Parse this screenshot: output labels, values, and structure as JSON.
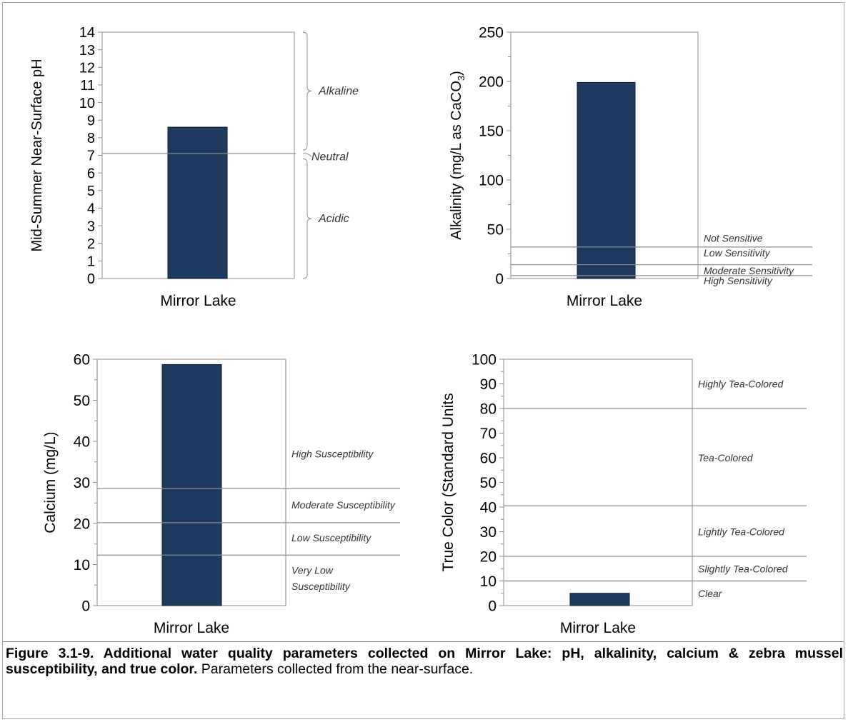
{
  "chart_data": [
    {
      "type": "bar",
      "categories": [
        "Mirror Lake"
      ],
      "values": [
        8.6
      ],
      "title": "",
      "xlabel": "",
      "ylabel": "Mid-Summer Near-Surface pH",
      "ylim": [
        0,
        14
      ],
      "yticks": [
        0,
        1,
        2,
        3,
        4,
        5,
        6,
        7,
        8,
        9,
        10,
        11,
        12,
        13,
        14
      ],
      "grid": false,
      "color": "#1f3a5f",
      "reference_lines": [
        {
          "y": 7.1
        }
      ],
      "range_labels": [
        {
          "label": "Alkaline",
          "from": 7.3,
          "to": 14
        },
        {
          "label": "Neutral",
          "at": 7.0
        },
        {
          "label": "Acidic",
          "from": 0,
          "to": 6.8
        }
      ]
    },
    {
      "type": "bar",
      "categories": [
        "Mirror Lake"
      ],
      "values": [
        199
      ],
      "title": "",
      "xlabel": "",
      "ylabel_parts": [
        "Alkalinity (mg/L as CaCO",
        "3",
        ")"
      ],
      "ylim": [
        0,
        250
      ],
      "yticks": [
        0,
        50,
        100,
        150,
        200,
        250
      ],
      "grid": false,
      "color": "#1f3a5f",
      "reference_lines": [
        {
          "y": 32
        },
        {
          "y": 14
        },
        {
          "y": 3
        }
      ],
      "threshold_labels": [
        {
          "label": "Not Sensitive",
          "y": 41
        },
        {
          "label": "Low Sensitivity",
          "y": 26
        },
        {
          "label": "Moderate Sensitivity",
          "y": 8
        },
        {
          "label": "High Sensitivity",
          "y": -2
        }
      ]
    },
    {
      "type": "bar",
      "categories": [
        "Mirror Lake"
      ],
      "values": [
        58.7
      ],
      "title": "",
      "xlabel": "",
      "ylabel": "Calcium (mg/L)",
      "ylim": [
        0,
        60
      ],
      "yticks": [
        0,
        10,
        20,
        30,
        40,
        50,
        60
      ],
      "grid": false,
      "color": "#1f3a5f",
      "reference_lines": [
        {
          "y": 28.5
        },
        {
          "y": 20.2
        },
        {
          "y": 12.3
        }
      ],
      "threshold_labels": [
        {
          "label": "High Susceptibility",
          "y": 37
        },
        {
          "label": "Moderate Susceptibility",
          "y": 24.5
        },
        {
          "label": "Low Susceptibility",
          "y": 16.5
        },
        {
          "label": "Very Low",
          "y": 8.6
        },
        {
          "label": "Susceptibility",
          "y": 4.7
        }
      ]
    },
    {
      "type": "bar",
      "categories": [
        "Mirror Lake"
      ],
      "values": [
        5
      ],
      "title": "",
      "xlabel": "",
      "ylabel": "True Color (Standard Units",
      "ylim": [
        0,
        100
      ],
      "yticks": [
        0,
        10,
        20,
        30,
        40,
        50,
        60,
        70,
        80,
        90,
        100
      ],
      "grid": false,
      "color": "#1f3a5f",
      "reference_lines": [
        {
          "y": 80
        },
        {
          "y": 40.5
        },
        {
          "y": 20
        },
        {
          "y": 10
        }
      ],
      "threshold_labels": [
        {
          "label": "Highly Tea-Colored",
          "y": 90
        },
        {
          "label": "Tea-Colored",
          "y": 60
        },
        {
          "label": "Lightly Tea-Colored",
          "y": 30
        },
        {
          "label": "Slightly Tea-Colored",
          "y": 15
        },
        {
          "label": "Clear",
          "y": 5
        }
      ]
    }
  ],
  "caption": {
    "bold": "Figure 3.1-9.  Additional water quality parameters collected on Mirror Lake: pH, alkalinity, calcium & zebra mussel susceptibility, and true color.",
    "normal": "  Parameters collected from the near-surface."
  }
}
